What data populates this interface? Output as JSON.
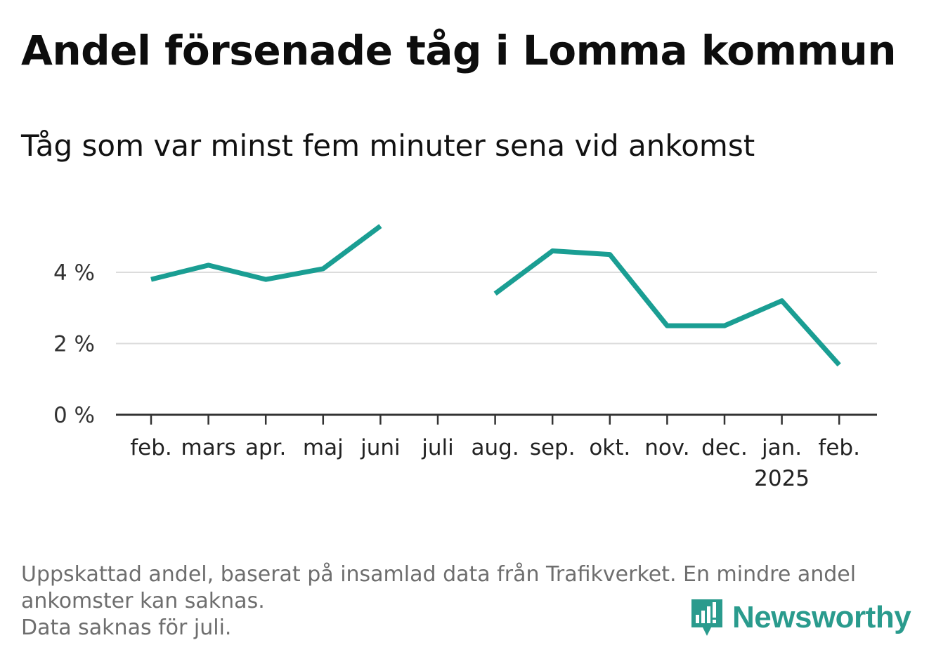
{
  "title": "Andel försenade tåg i Lomma kommun",
  "subtitle": "Tåg som var minst fem minuter sena vid ankomst",
  "notes": [
    "Uppskattad andel, baserat på insamlad data från Trafikverket. En mindre andel",
    "ankomster kan saknas.",
    "Data saknas för juli."
  ],
  "brand": {
    "name": "Newsworthy",
    "color": "#2a9b8d",
    "icon": "newsworthy-logo-icon"
  },
  "chart_data": {
    "type": "line",
    "categories": [
      "feb.",
      "mars",
      "apr.",
      "maj",
      "juni",
      "juli",
      "aug.",
      "sep.",
      "okt.",
      "nov.",
      "dec.",
      "jan.",
      "feb."
    ],
    "year_labels": [
      null,
      null,
      null,
      null,
      null,
      null,
      null,
      null,
      null,
      null,
      null,
      "2025",
      null
    ],
    "series": [
      {
        "values": [
          3.8,
          4.2,
          3.8,
          4.1,
          5.3,
          null,
          3.4,
          4.6,
          4.5,
          2.5,
          2.5,
          3.2,
          1.4
        ]
      }
    ],
    "y_ticks": [
      0,
      2,
      4
    ],
    "y_tick_labels": [
      "0 %",
      "2 %",
      "4 %"
    ],
    "ylim": [
      0,
      5.5
    ],
    "grid": true,
    "line_color": "#1a9e93"
  }
}
